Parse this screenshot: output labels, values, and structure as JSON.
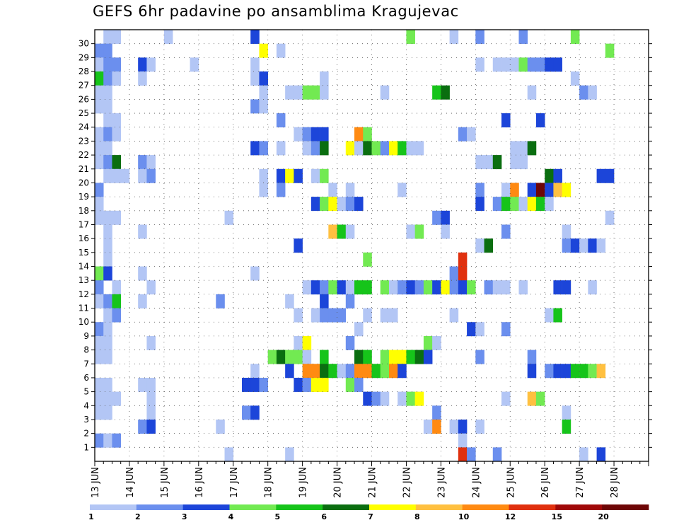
{
  "title": "GEFS 6hr padavine po ansamblima Kragujevac",
  "chart_data": {
    "type": "heatmap",
    "title": "GEFS 6hr padavine po ansamblima Kragujevac",
    "x_days": [
      "13 JUN",
      "14 JUN",
      "15 JUN",
      "16 JUN",
      "17 JUN",
      "18 JUN",
      "19 JUN",
      "20 JUN",
      "21 JUN",
      "22 JUN",
      "23 JUN",
      "24 JUN",
      "25 JUN",
      "26 JUN",
      "27 JUN",
      "28 JUN"
    ],
    "x_steps_per_day": 4,
    "y_members": [
      1,
      2,
      3,
      4,
      5,
      6,
      7,
      8,
      9,
      10,
      11,
      12,
      13,
      14,
      15,
      16,
      17,
      18,
      19,
      20,
      21,
      22,
      23,
      24,
      25,
      26,
      27,
      28,
      29,
      30
    ],
    "grid": "dotted",
    "colorbar": {
      "position": "bottom",
      "labels": [
        "1",
        "2",
        "3",
        "4",
        "5",
        "6",
        "7",
        "8",
        "10",
        "12",
        "15",
        "20"
      ],
      "colors": [
        "#b3c6f5",
        "#6b8fee",
        "#1c45d9",
        "#72ea52",
        "#16c41a",
        "#0a6e10",
        "#ffff00",
        "#ffc040",
        "#ff8a12",
        "#e0300e",
        "#a00808",
        "#6e0606"
      ]
    },
    "cells": [
      {
        "member": 30,
        "x": [
          1,
          2,
          8,
          18,
          36,
          41,
          44,
          49,
          55
        ],
        "level": [
          1,
          1,
          1,
          3,
          4,
          1,
          2,
          2,
          4
        ]
      },
      {
        "member": 29,
        "x": [
          0,
          1,
          19,
          21,
          59
        ],
        "level": [
          2,
          2,
          7,
          1,
          4
        ]
      },
      {
        "member": 28,
        "x": [
          0,
          1,
          2,
          5,
          6,
          11,
          18,
          44,
          46,
          47,
          48,
          49,
          50,
          51,
          52,
          53
        ],
        "level": [
          1,
          2,
          2,
          3,
          1,
          1,
          1,
          1,
          1,
          1,
          1,
          4,
          2,
          2,
          3,
          3
        ]
      },
      {
        "member": 27,
        "x": [
          0,
          1,
          2,
          5,
          18,
          19,
          26,
          55
        ],
        "level": [
          5,
          2,
          1,
          1,
          1,
          3,
          1,
          1
        ]
      },
      {
        "member": 26,
        "x": [
          0,
          1,
          19,
          22,
          23,
          24,
          25,
          26,
          33,
          39,
          40,
          50,
          56,
          57
        ],
        "level": [
          1,
          1,
          1,
          1,
          1,
          4,
          4,
          1,
          1,
          5,
          6,
          1,
          2,
          1
        ]
      },
      {
        "member": 25,
        "x": [
          0,
          1,
          18,
          19
        ],
        "level": [
          1,
          1,
          2,
          1
        ]
      },
      {
        "member": 24,
        "x": [
          1,
          2,
          21,
          47,
          51
        ],
        "level": [
          1,
          1,
          2,
          3,
          3
        ]
      },
      {
        "member": 23,
        "x": [
          0,
          1,
          2,
          23,
          24,
          25,
          26,
          30,
          31,
          42,
          43
        ],
        "level": [
          1,
          2,
          1,
          1,
          2,
          3,
          3,
          9,
          4,
          2,
          1
        ]
      },
      {
        "member": 22,
        "x": [
          0,
          1,
          18,
          19,
          21,
          24,
          25,
          26,
          29,
          30,
          31,
          32,
          33,
          34,
          35,
          36,
          37,
          48,
          49,
          50
        ],
        "level": [
          1,
          1,
          3,
          2,
          1,
          1,
          2,
          6,
          7,
          1,
          6,
          4,
          2,
          7,
          5,
          1,
          1,
          1,
          1,
          6
        ]
      },
      {
        "member": 21,
        "x": [
          0,
          1,
          2,
          5,
          6,
          44,
          45,
          46,
          48,
          49
        ],
        "level": [
          1,
          2,
          6,
          2,
          1,
          1,
          1,
          6,
          1,
          1
        ]
      },
      {
        "member": 20,
        "x": [
          1,
          2,
          3,
          5,
          6,
          19,
          21,
          22,
          23,
          25,
          26,
          52,
          53,
          58,
          59
        ],
        "level": [
          1,
          1,
          1,
          1,
          2,
          1,
          3,
          7,
          3,
          1,
          4,
          6,
          3,
          3,
          3
        ]
      },
      {
        "member": 19,
        "x": [
          0,
          19,
          21,
          27,
          29,
          35,
          44,
          47,
          48,
          50,
          51,
          52,
          53,
          54
        ],
        "level": [
          2,
          1,
          2,
          1,
          1,
          1,
          2,
          1,
          9,
          3,
          12,
          3,
          8,
          7
        ]
      },
      {
        "member": 18,
        "x": [
          0,
          25,
          26,
          27,
          28,
          29,
          30,
          44,
          46,
          47,
          48,
          49,
          50,
          51,
          52
        ],
        "level": [
          1,
          3,
          4,
          7,
          1,
          2,
          3,
          3,
          2,
          5,
          4,
          1,
          7,
          5,
          1
        ]
      },
      {
        "member": 17,
        "x": [
          0,
          1,
          2,
          15,
          39,
          40,
          59
        ],
        "level": [
          1,
          1,
          1,
          1,
          2,
          3,
          1
        ]
      },
      {
        "member": 16,
        "x": [
          1,
          5,
          27,
          28,
          29,
          36,
          37,
          40,
          47,
          54
        ],
        "level": [
          1,
          1,
          8,
          5,
          1,
          1,
          4,
          1,
          2,
          1
        ]
      },
      {
        "member": 15,
        "x": [
          1,
          23,
          44,
          45,
          54,
          55,
          56,
          57,
          58
        ],
        "level": [
          1,
          3,
          1,
          6,
          2,
          3,
          1,
          3,
          1
        ]
      },
      {
        "member": 14,
        "x": [
          1,
          31,
          42
        ],
        "level": [
          1,
          4,
          10
        ]
      },
      {
        "member": 13,
        "x": [
          0,
          1,
          5,
          18,
          41,
          42
        ],
        "level": [
          4,
          3,
          1,
          1,
          2,
          10
        ]
      },
      {
        "member": 12,
        "x": [
          0,
          2,
          6,
          24,
          25,
          26,
          27,
          28,
          29,
          30,
          31,
          33,
          34,
          35,
          36,
          37,
          38,
          39,
          40,
          41,
          42,
          43,
          45,
          46,
          47,
          49,
          53,
          54,
          57
        ],
        "level": [
          2,
          1,
          1,
          1,
          3,
          2,
          4,
          3,
          1,
          5,
          5,
          4,
          1,
          2,
          3,
          2,
          4,
          3,
          7,
          2,
          3,
          4,
          2,
          1,
          1,
          1,
          3,
          3,
          1
        ]
      },
      {
        "member": 11,
        "x": [
          0,
          1,
          2,
          5,
          14,
          22,
          26,
          29
        ],
        "level": [
          1,
          2,
          5,
          1,
          2,
          1,
          3,
          2
        ]
      },
      {
        "member": 10,
        "x": [
          1,
          2,
          23,
          25,
          26,
          27,
          28,
          31,
          33,
          34,
          41,
          52,
          53
        ],
        "level": [
          1,
          2,
          1,
          1,
          2,
          2,
          2,
          1,
          1,
          1,
          1,
          1,
          5
        ]
      },
      {
        "member": 9,
        "x": [
          0,
          1,
          30,
          43,
          44,
          47
        ],
        "level": [
          2,
          1,
          1,
          3,
          1,
          2
        ]
      },
      {
        "member": 8,
        "x": [
          0,
          1,
          6,
          23,
          24,
          29,
          38,
          39
        ],
        "level": [
          1,
          1,
          1,
          1,
          7,
          2,
          4,
          1
        ]
      },
      {
        "member": 7,
        "x": [
          0,
          1,
          20,
          21,
          22,
          23,
          24,
          26,
          30,
          31,
          33,
          34,
          35,
          36,
          37,
          38,
          44,
          50
        ],
        "level": [
          1,
          1,
          4,
          6,
          4,
          4,
          1,
          5,
          6,
          5,
          4,
          7,
          7,
          5,
          6,
          3,
          2,
          2
        ]
      },
      {
        "member": 6,
        "x": [
          18,
          22,
          24,
          25,
          26,
          27,
          28,
          29,
          30,
          31,
          32,
          33,
          34,
          35,
          50,
          52,
          53,
          54,
          55,
          56,
          57,
          58
        ],
        "level": [
          1,
          3,
          9,
          9,
          6,
          5,
          1,
          2,
          9,
          9,
          5,
          4,
          9,
          3,
          3,
          2,
          3,
          3,
          5,
          5,
          4,
          8
        ]
      },
      {
        "member": 5,
        "x": [
          0,
          1,
          5,
          6,
          17,
          18,
          19,
          23,
          24,
          25,
          26,
          29,
          30
        ],
        "level": [
          1,
          1,
          1,
          1,
          3,
          3,
          2,
          3,
          2,
          7,
          7,
          4,
          2
        ]
      },
      {
        "member": 4,
        "x": [
          0,
          1,
          2,
          6,
          31,
          32,
          33,
          35,
          36,
          37,
          47,
          50,
          51
        ],
        "level": [
          1,
          1,
          1,
          1,
          3,
          2,
          1,
          1,
          4,
          7,
          1,
          8,
          4
        ]
      },
      {
        "member": 3,
        "x": [
          0,
          1,
          6,
          17,
          18,
          39,
          54
        ],
        "level": [
          1,
          1,
          1,
          2,
          3,
          2,
          1
        ]
      },
      {
        "member": 2,
        "x": [
          5,
          6,
          14,
          38,
          39,
          41,
          42,
          44,
          54
        ],
        "level": [
          2,
          3,
          1,
          1,
          9,
          1,
          3,
          1,
          5
        ]
      },
      {
        "member": 1,
        "x": [
          0,
          1,
          2,
          42
        ],
        "level": [
          2,
          1,
          2,
          1
        ]
      },
      {
        "member": 0,
        "x": [
          15,
          22,
          42,
          43,
          46,
          56,
          58
        ],
        "level": [
          1,
          1,
          10,
          2,
          2,
          1,
          3
        ]
      }
    ]
  }
}
